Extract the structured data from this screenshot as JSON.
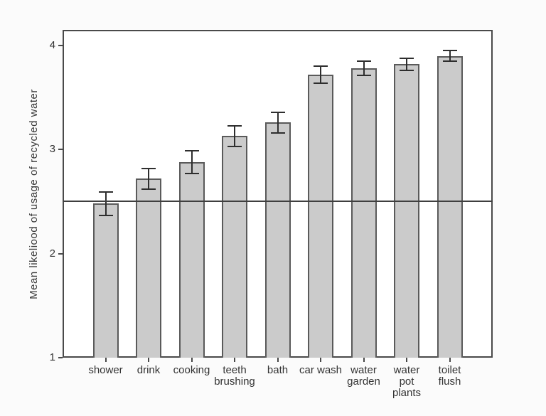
{
  "page": {
    "background": "#fbfbfb"
  },
  "chart_data": {
    "type": "bar",
    "title": "",
    "xlabel": "",
    "ylabel": "Mean likeliood of usage of recycled water",
    "categories": [
      "shower",
      "drink",
      "cooking",
      "teeth\nbrushing",
      "bath",
      "car wash",
      "water\ngarden",
      "water\npot\nplants",
      "toilet\nflush"
    ],
    "values": [
      2.48,
      2.72,
      2.88,
      3.13,
      3.26,
      3.72,
      3.78,
      3.82,
      3.9
    ],
    "error_bars": [
      0.11,
      0.1,
      0.11,
      0.1,
      0.1,
      0.08,
      0.07,
      0.06,
      0.05
    ],
    "reference_line": 2.5,
    "yticks": [
      1,
      2,
      3,
      4
    ],
    "ylim": [
      1,
      4.15
    ],
    "grid": false,
    "legend": null,
    "colors": {
      "bar_fill": "#cbcbcb",
      "bar_border": "#5a5a5a",
      "error_bar": "#2e2e2e",
      "axis_frame": "#4a4a4a",
      "reference_line": "#3f3f3f",
      "text": "#333333",
      "plot_background": "#ffffff"
    }
  }
}
